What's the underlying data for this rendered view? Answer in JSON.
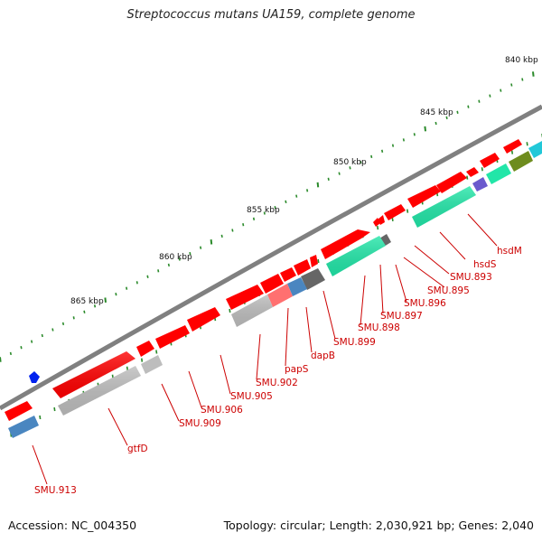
{
  "title": "Streptococcus mutans UA159, complete genome",
  "footer": {
    "accession": "Accession: NC_004350",
    "summary": "Topology: circular; Length: 2,030,921 bp; Genes: 2,040"
  },
  "scale_labels": [
    "840 kbp",
    "845 kbp",
    "850 kbp",
    "855 kbp",
    "860 kbp",
    "865 kbp"
  ],
  "gene_labels": [
    "hsdM",
    "hsdS",
    "SMU.893",
    "SMU.895",
    "SMU.896",
    "SMU.897",
    "SMU.898",
    "SMU.899",
    "dapB",
    "papS",
    "SMU.902",
    "SMU.905",
    "SMU.906",
    "SMU.909",
    "gtfD",
    "SMU.913"
  ],
  "colors": {
    "cds": "#ff0000",
    "backbone": "#808080",
    "tick": "#2a8a2a",
    "label": "#cc0000",
    "teal": "#22e6a8",
    "silver": "#bdbdbd",
    "steel": "#4a86c0",
    "dark_gray": "#666666",
    "olive": "#6e8c1e",
    "purple": "#6a5acd",
    "cyan": "#22c8d8",
    "marker": "#0022ee"
  }
}
